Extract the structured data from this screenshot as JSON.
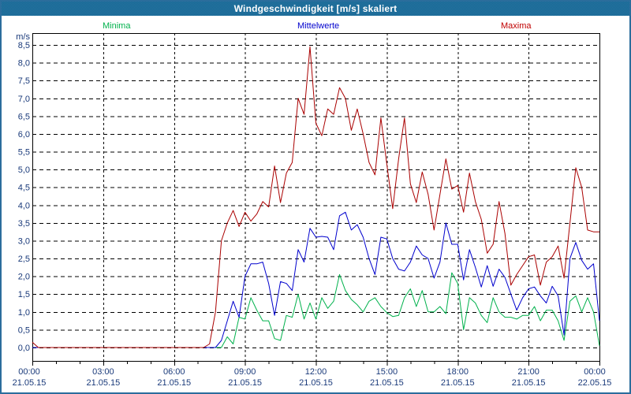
{
  "window": {
    "title": "Windgeschwindigkeit [m/s] skaliert"
  },
  "legend": {
    "minima": "Minima",
    "mittelwerte": "Mittelwerte",
    "maxima": "Maxima"
  },
  "colors": {
    "titlebar": "#1D6E9D",
    "frame_border": "#2B6D9C",
    "axis_text": "#1A3A7A",
    "grid": "#000000",
    "minima_line": "#00B14C",
    "mittelwerte_line": "#0000CD",
    "maxima_line": "#AA0000"
  },
  "axes": {
    "y_unit": "m/s",
    "y_ticks": [
      "8,5",
      "8,0",
      "7,5",
      "7,0",
      "6,5",
      "6,0",
      "5,5",
      "5,0",
      "4,5",
      "4,0",
      "3,5",
      "3,0",
      "2,5",
      "2,0",
      "1,5",
      "1,0",
      "0,5",
      "0,0"
    ],
    "x_ticks": [
      {
        "time": "00:00",
        "date": "21.05.15"
      },
      {
        "time": "03:00",
        "date": "21.05.15"
      },
      {
        "time": "06:00",
        "date": "21.05.15"
      },
      {
        "time": "09:00",
        "date": "21.05.15"
      },
      {
        "time": "12:00",
        "date": "21.05.15"
      },
      {
        "time": "15:00",
        "date": "21.05.15"
      },
      {
        "time": "18:00",
        "date": "21.05.15"
      },
      {
        "time": "21:00",
        "date": "21.05.15"
      },
      {
        "time": "00:00",
        "date": "22.05.15"
      }
    ]
  },
  "chart_data": {
    "type": "line",
    "title": "Windgeschwindigkeit [m/s] skaliert",
    "ylabel": "m/s",
    "ylim": [
      0,
      8.5
    ],
    "y_step": 0.5,
    "x_start": "21.05.15 00:00",
    "x_end": "22.05.15 00:00",
    "x_step_minutes": 15,
    "grid": "dashed",
    "legend_position": "top",
    "series": [
      {
        "name": "Minima",
        "color": "#00B14C",
        "values": [
          0,
          0,
          0,
          0,
          0,
          0,
          0,
          0,
          0,
          0,
          0,
          0,
          0,
          0,
          0,
          0,
          0,
          0,
          0,
          0,
          0,
          0,
          0,
          0,
          0,
          0,
          0,
          0,
          0,
          0,
          0,
          0,
          0,
          0.3,
          0.1,
          0.85,
          0.8,
          1.4,
          1.05,
          0.75,
          0.75,
          0.25,
          0.2,
          0.9,
          0.85,
          1.5,
          0.8,
          1.25,
          0.8,
          1.4,
          1.1,
          1.3,
          2.05,
          1.6,
          1.35,
          1.2,
          1.0,
          1.3,
          1.4,
          1.15,
          0.98,
          0.87,
          0.9,
          1.4,
          1.65,
          1.15,
          1.6,
          1.0,
          1.0,
          1.15,
          0.95,
          2.1,
          1.8,
          0.5,
          1.4,
          1.25,
          0.9,
          0.7,
          1.4,
          1.0,
          0.85,
          0.85,
          0.8,
          0.9,
          0.9,
          1.15,
          0.75,
          1.05,
          1.05,
          0.75,
          0.2,
          1.3,
          1.45,
          1.0,
          1.4,
          1.0,
          0.05
        ]
      },
      {
        "name": "Mittelwerte",
        "color": "#0000CD",
        "values": [
          0,
          0,
          0,
          0,
          0,
          0,
          0,
          0,
          0,
          0,
          0,
          0,
          0,
          0,
          0,
          0,
          0,
          0,
          0,
          0,
          0,
          0,
          0,
          0,
          0,
          0,
          0,
          0,
          0,
          0,
          0,
          0,
          0.2,
          0.75,
          1.3,
          0.85,
          2.0,
          2.35,
          2.35,
          2.4,
          1.8,
          0.9,
          1.85,
          1.8,
          1.6,
          2.75,
          2.4,
          3.35,
          3.1,
          3.12,
          3.1,
          2.75,
          3.7,
          3.8,
          3.3,
          3.45,
          3.1,
          2.5,
          2.05,
          3.1,
          3.05,
          2.5,
          2.2,
          2.15,
          2.4,
          2.85,
          2.6,
          2.5,
          1.95,
          2.4,
          3.5,
          2.9,
          2.9,
          1.9,
          2.75,
          2.25,
          1.7,
          2.3,
          1.72,
          2.2,
          1.97,
          1.5,
          1.05,
          1.4,
          1.65,
          1.7,
          1.45,
          1.25,
          1.72,
          1.45,
          0.35,
          2.5,
          2.95,
          2.45,
          2.2,
          2.35,
          0.75
        ]
      },
      {
        "name": "Maxima",
        "color": "#AA0000",
        "values": [
          0.15,
          0,
          0,
          0,
          0,
          0,
          0,
          0,
          0,
          0,
          0,
          0,
          0,
          0,
          0,
          0,
          0,
          0,
          0,
          0,
          0,
          0,
          0,
          0,
          0,
          0,
          0,
          0,
          0,
          0,
          0.1,
          1.0,
          3.0,
          3.5,
          3.85,
          3.4,
          3.8,
          3.55,
          3.75,
          4.1,
          3.95,
          5.1,
          4.07,
          4.9,
          5.2,
          7.0,
          6.55,
          8.45,
          6.3,
          5.95,
          6.7,
          6.55,
          7.3,
          7.0,
          6.1,
          6.7,
          6.0,
          5.2,
          4.85,
          6.45,
          5.15,
          3.9,
          5.3,
          6.45,
          4.6,
          4.07,
          4.93,
          4.3,
          3.3,
          4.3,
          5.3,
          4.45,
          4.55,
          3.8,
          4.9,
          4.1,
          3.6,
          2.65,
          2.9,
          4.1,
          3.2,
          1.75,
          2.05,
          2.3,
          2.55,
          2.6,
          1.75,
          2.4,
          2.55,
          2.85,
          1.95,
          3.5,
          5.05,
          4.5,
          3.3,
          3.25,
          3.25
        ]
      }
    ]
  }
}
